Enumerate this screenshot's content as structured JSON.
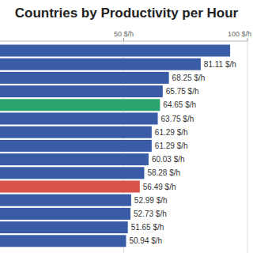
{
  "chart_data": {
    "type": "bar",
    "title": "Countries by Productivity per Hour",
    "orientation": "horizontal",
    "categories": [
      null,
      null,
      null,
      null,
      null,
      null,
      null,
      null,
      null,
      null,
      null,
      null,
      null,
      null,
      null
    ],
    "values": [
      93,
      81.11,
      68.25,
      65.75,
      64.65,
      63.75,
      61.29,
      61.29,
      60.03,
      58.28,
      56.49,
      52.99,
      52.73,
      51.65,
      50.94
    ],
    "value_labels": [
      null,
      "81.11 $/h",
      "68.25 $/h",
      "65.75 $/h",
      "64.65 $/h",
      "63.75 $/h",
      "61.29 $/h",
      "61.29 $/h",
      "60.03 $/h",
      "58.28 $/h",
      "56.49 $/h",
      "52.99 $/h",
      "52.73 $/h",
      "51.65 $/h",
      "50.94 $/h"
    ],
    "colors": [
      "#3a5ba6",
      "#3a5ba6",
      "#3a5ba6",
      "#3a5ba6",
      "#2aa46e",
      "#3a5ba6",
      "#3a5ba6",
      "#3a5ba6",
      "#3a5ba6",
      "#3a5ba6",
      "#d9534a",
      "#3a5ba6",
      "#3a5ba6",
      "#3a5ba6",
      "#3a5ba6"
    ],
    "xlim": [
      0,
      100
    ],
    "xticks": [
      {
        "value": 50,
        "label": "50 $/h"
      },
      {
        "value": 100,
        "label": "100 $/h"
      }
    ],
    "grid": true,
    "data_labels": true
  }
}
